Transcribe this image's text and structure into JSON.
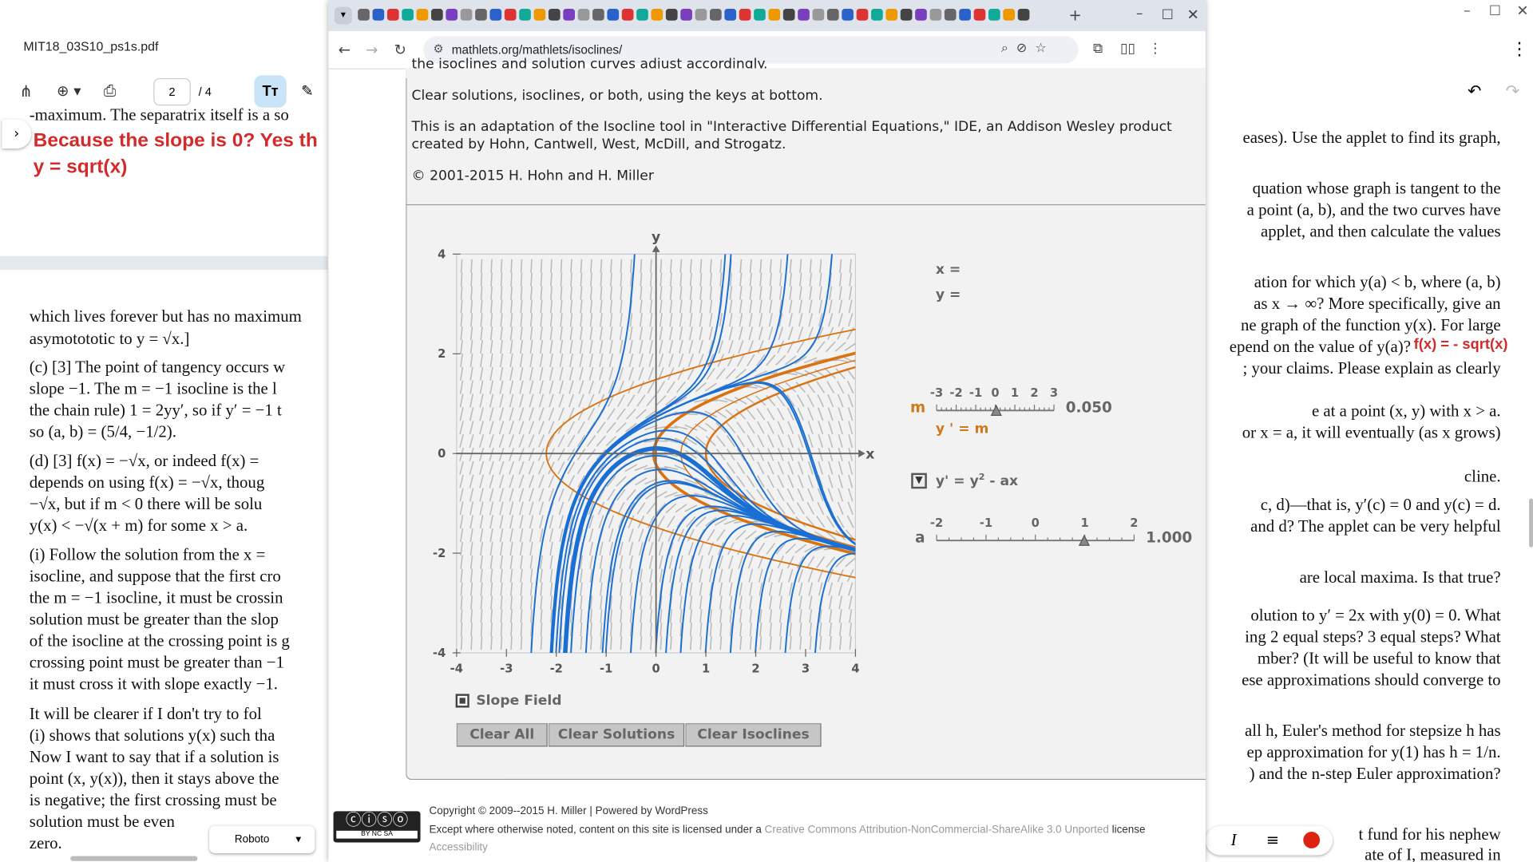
{
  "pdf": {
    "filename": "MIT18_03S10_ps1s.pdf",
    "page": "2",
    "pages": "/ 4",
    "font": "Roboto",
    "left_annotations": [
      "Because the slope is 0?  Yes th",
      "y = sqrt(x)"
    ],
    "left_lines": [
      "-maximum.  The separatrix itself is a so",
      "which lives forever but has no maximum",
      "asymotototic to y = √x.]",
      "(c) [3] The point of tangency occurs w",
      "slope −1. The m = −1 isocline is the l",
      "the chain rule) 1 = 2yy′, so if y′ = −1 t",
      "so (a, b) = (5/4, −1/2).",
      "(d) [3] f(x) = −√x, or indeed f(x) =",
      "depends on using f(x) = −√x, thoug",
      "−√x, but if m < 0 there will be solu",
      "y(x) < −√(x + m) for some x > a.",
      "(i) Follow the solution from the x =",
      "isocline, and suppose that the first cro",
      "the m = −1 isocline, it must be crossin",
      "solution must be greater than the slop",
      "of the isocline at the crossing point is g",
      "crossing point must be greater than −1",
      "it must cross it with slope exactly −1.",
      "It will be clearer if I don't try to fol",
      "(i) shows that solutions y(x) such tha",
      "Now I want to say that if a solution is",
      "point (x, y(x)), then it stays above the",
      "is negative; the first crossing must be",
      "solution must be even",
      "zero."
    ],
    "right_lines": [
      "eases).  Use the applet to find its graph,",
      "quation whose graph is tangent to the",
      "a point (a, b), and the two curves have",
      " applet, and then calculate the values",
      "ation for which y(a) < b, where (a, b)",
      "as x → ∞?  More specifically, give an",
      "ne graph of the function y(x).  For large",
      "epend on the value of y(a)?",
      "; your claims.  Please explain as clearly",
      "e at a point (x, y) with x > a.",
      "or x = a, it will eventually (as x grows)",
      "cline.",
      "c, d)—that is, y′(c) = 0 and y(c) = d.",
      "and d?  The applet can be very helpful",
      " are local maxima.  Is that true?",
      "olution to y′ = 2x with y(0) = 0.  What",
      "ing 2 equal steps?  3 equal steps?  What",
      "mber?  (It will be useful to know that",
      "ese approximations should converge to",
      "all h, Euler's method for stepsize h has",
      "ep approximation for y(1) has h = 1/n.",
      ") and the n-step Euler approximation?",
      "t fund for his nephew",
      "ate of I, measured in"
    ],
    "right_annotation": "f(x) = - sqrt(x)"
  },
  "browser": {
    "url": "mathlets.org/mathlets/isoclines/",
    "intro_clipped": "the isoclines and solution curves adjust accordingly.",
    "paragraphs": [
      "Clear solutions, isoclines, or both, using the keys at bottom.",
      "This is an adaptation of the Isocline tool in \"Interactive Differential Equations,\" IDE, an Addison Wesley product",
      "created by Hohn, Cantwell, West, McDill, and Strogatz.",
      "© 2001-2015 H. Hohn and H. Miller"
    ],
    "applet": {
      "x_label": "x",
      "y_label": "y",
      "xticks": [
        "-4",
        "-3",
        "-2",
        "-1",
        "0",
        "1",
        "2",
        "3",
        "4"
      ],
      "yticks": [
        "4",
        "2",
        "0",
        "-2",
        "-4"
      ],
      "readout_x": "x =",
      "readout_y": "y =",
      "m_label": "m",
      "m_scale": [
        "-3",
        "-2",
        "-1",
        "0",
        "1",
        "2",
        "3"
      ],
      "m_value": "0.050",
      "isocline_eq": "y ' = m",
      "equation": {
        "lhs": "y' = y",
        "exp": "2",
        "rhs": " - ax"
      },
      "a_label": "a",
      "a_scale": [
        "-2",
        "-1",
        "0",
        "1",
        "2"
      ],
      "a_value": "1.000",
      "slope_field": "Slope Field",
      "buttons": [
        "Clear All",
        "Clear Solutions",
        "Clear Isoclines"
      ]
    },
    "footer": {
      "copyright": "Copyright © 2009--2015 H. Miller | Powered by WordPress",
      "license_pre": "Except where otherwise noted, content on this site is licensed under a",
      "license_link": "Creative Commons Attribution-NonCommercial-ShareAlike 3.0 Unported",
      "license_post": "license",
      "accessibility": "Accessibility",
      "badge": "BY  NC  SA"
    }
  }
}
